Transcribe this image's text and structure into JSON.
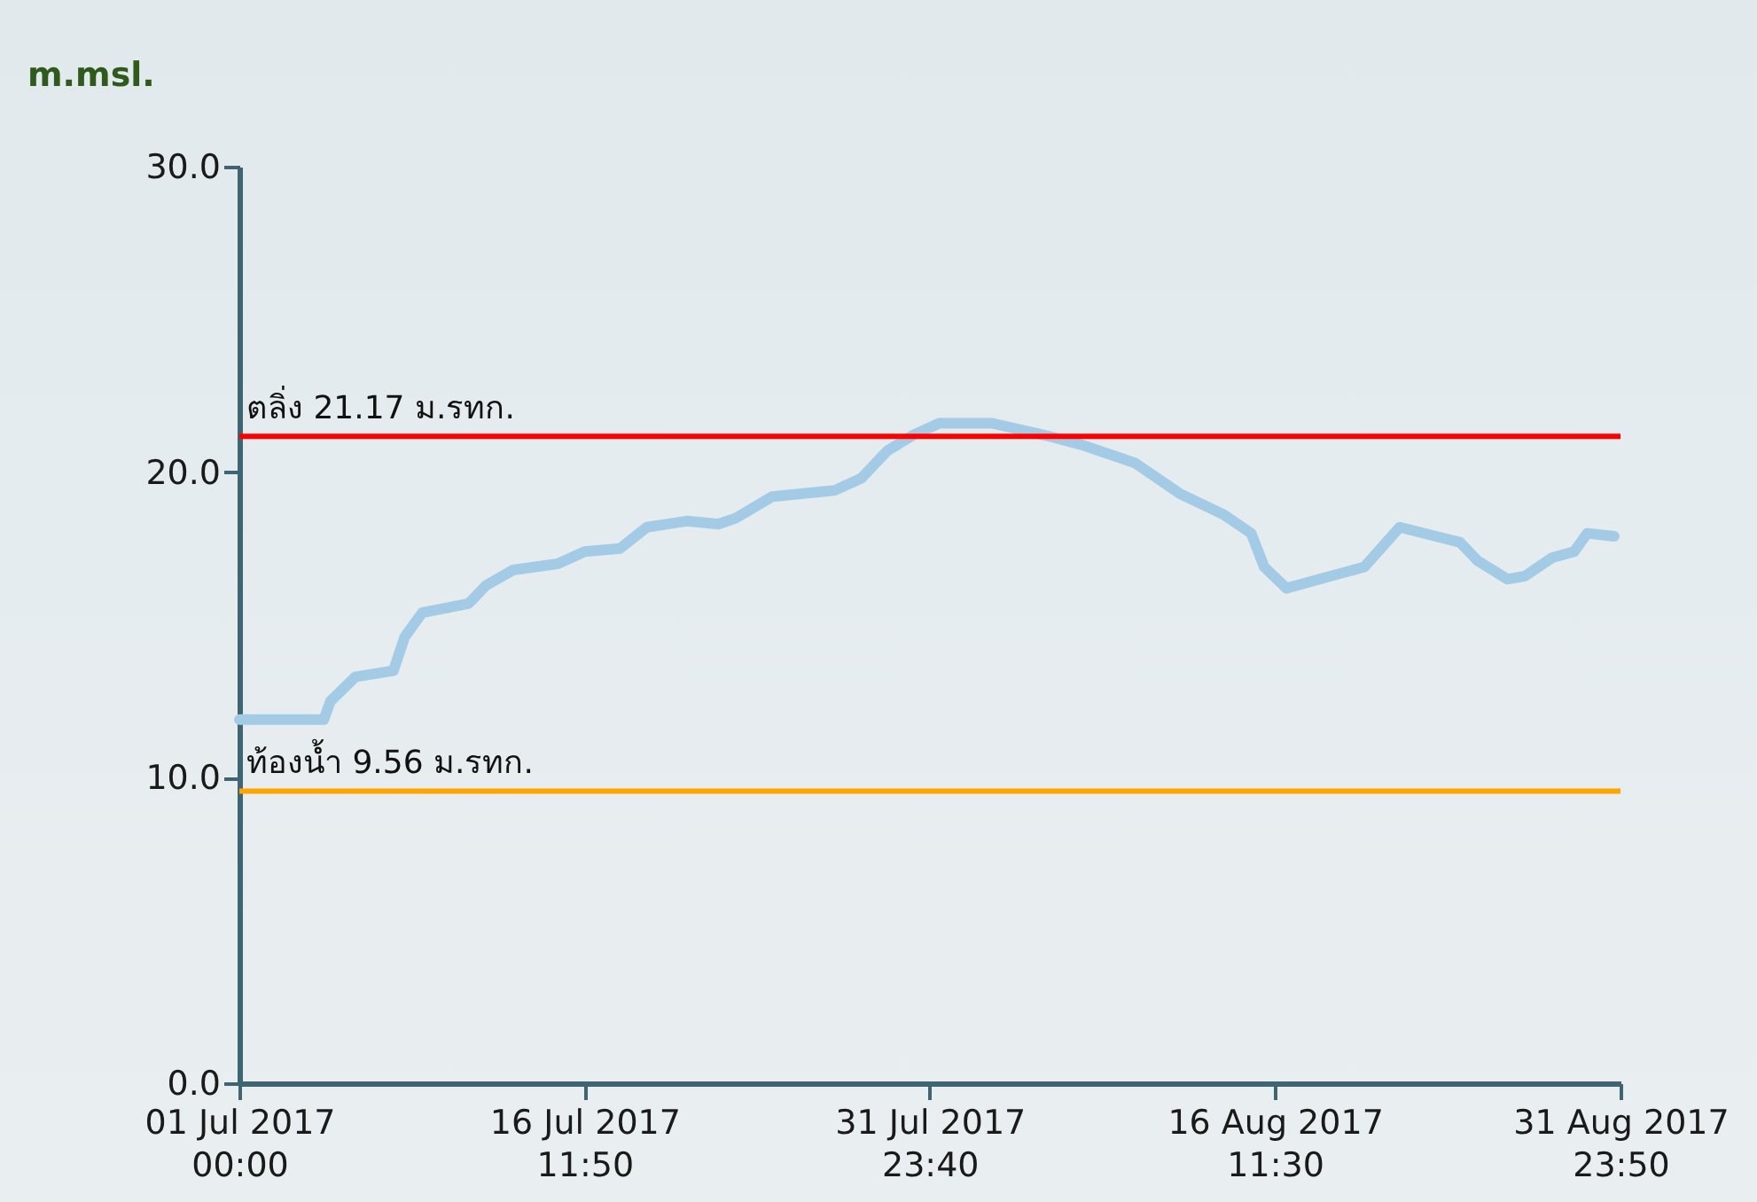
{
  "chart_data": {
    "type": "line",
    "ylabel": "m.msl.",
    "x": [
      "2017-07-01T00:00",
      "2017-07-04T19:00",
      "2017-07-05T02:00",
      "2017-07-06T05:00",
      "2017-07-07T22:00",
      "2017-07-08T10:00",
      "2017-07-09T05:00",
      "2017-07-11T07:00",
      "2017-07-12T02:00",
      "2017-07-13T07:00",
      "2017-07-15T07:00",
      "2017-07-16T12:00",
      "2017-07-18T02:00",
      "2017-07-19T07:00",
      "2017-07-21T02:00",
      "2017-07-22T12:00",
      "2017-07-23T07:00",
      "2017-07-24T22:00",
      "2017-07-27T17:00",
      "2017-07-28T22:00",
      "2017-07-30T02:00",
      "2017-07-31T05:00",
      "2017-08-01T10:00",
      "2017-08-03T19:00",
      "2017-08-06T05:00",
      "2017-08-07T19:00",
      "2017-08-10T05:00",
      "2017-08-12T05:00",
      "2017-08-14T05:00",
      "2017-08-15T10:00",
      "2017-08-16T00:00",
      "2017-08-17T00:00",
      "2017-08-18T12:00",
      "2017-08-20T12:00",
      "2017-08-22T02:00",
      "2017-08-23T17:00",
      "2017-08-24T19:00",
      "2017-08-25T14:00",
      "2017-08-26T22:00",
      "2017-08-27T17:00",
      "2017-08-28T22:00",
      "2017-08-29T22:00",
      "2017-08-30T12:00",
      "2017-08-31T17:00"
    ],
    "series": [
      {
        "color": "#a3cbe6",
        "values": [
          11.9,
          11.9,
          12.5,
          13.3,
          13.5,
          14.6,
          15.4,
          15.7,
          16.3,
          16.8,
          17.0,
          17.4,
          17.5,
          18.2,
          18.4,
          18.3,
          18.5,
          19.2,
          19.4,
          19.8,
          20.7,
          21.2,
          21.6,
          21.6,
          21.2,
          20.9,
          20.3,
          19.3,
          18.6,
          18.0,
          16.9,
          16.2,
          16.5,
          16.9,
          18.2,
          17.9,
          17.7,
          17.1,
          16.5,
          16.6,
          17.2,
          17.4,
          18.0,
          17.9
        ]
      }
    ],
    "xlim": [
      "2017-07-01T00:00",
      "2017-08-31T23:50"
    ],
    "xticks": [
      {
        "value": "2017-07-01T00:00",
        "label": "01 Jul 2017\n00:00"
      },
      {
        "value": "2017-07-16T11:50",
        "label": "16 Jul 2017\n11:50"
      },
      {
        "value": "2017-07-31T23:40",
        "label": "31 Jul 2017\n23:40"
      },
      {
        "value": "2017-08-16T11:30",
        "label": "16 Aug 2017\n11:30"
      },
      {
        "value": "2017-08-31T23:50",
        "label": "31 Aug 2017\n23:50"
      }
    ],
    "ylim": [
      0,
      30
    ],
    "yticks": [
      {
        "value": 0,
        "label": "0.0"
      },
      {
        "value": 10,
        "label": "10.0"
      },
      {
        "value": 20,
        "label": "20.0"
      },
      {
        "value": 30,
        "label": "30.0"
      }
    ],
    "ref_lines": [
      {
        "axis": "y",
        "value": 21.17,
        "label": "ตลิ่ง 21.17 ม.รทก.",
        "color": "#ff0000"
      },
      {
        "axis": "y",
        "value": 9.56,
        "label": "ท้องน้ำ 9.56 ม.รทก.",
        "color": "#ffa500"
      }
    ],
    "line_style": "solid"
  }
}
